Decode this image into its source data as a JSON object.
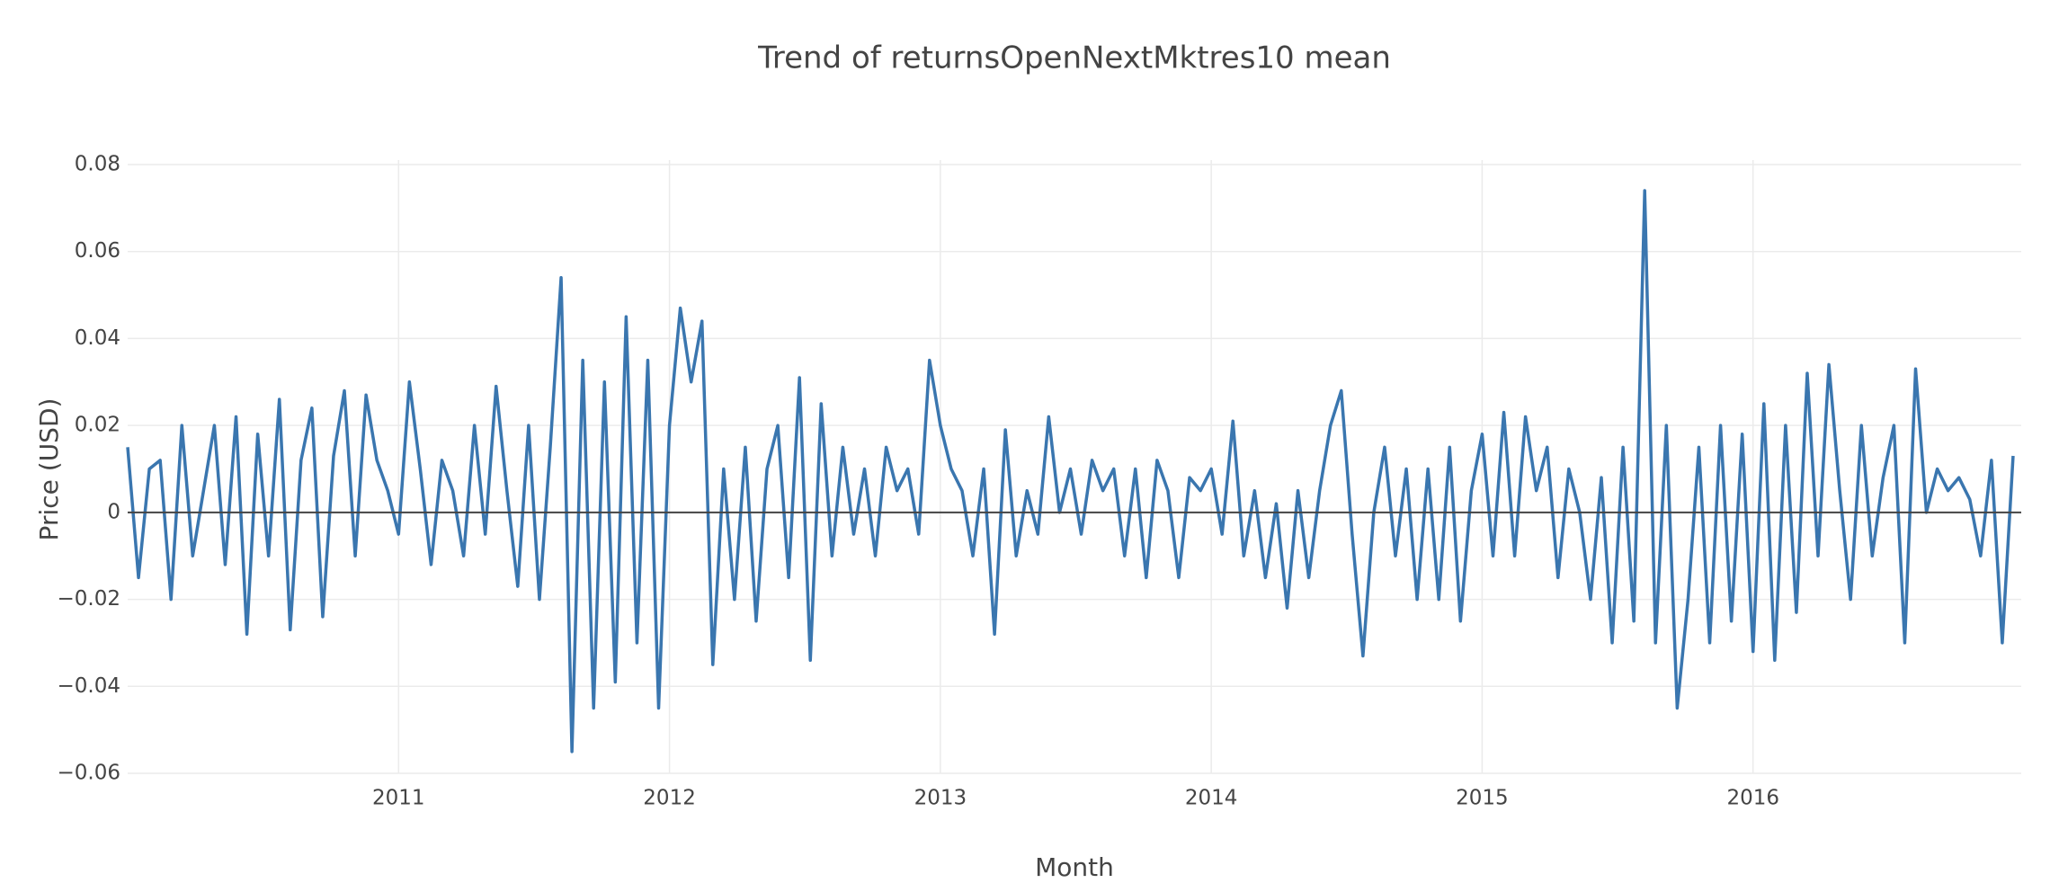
{
  "chart_data": {
    "type": "line",
    "title": "Trend of returnsOpenNextMktres10 mean",
    "xlabel": "Month",
    "ylabel": "Price (USD)",
    "xlim": [
      2010.0,
      2016.99
    ],
    "xticks": [
      2011,
      2012,
      2013,
      2014,
      2015,
      2016
    ],
    "ylim": [
      -0.06,
      0.08
    ],
    "yticks": [
      {
        "value": -0.06,
        "label": "−0.06"
      },
      {
        "value": -0.04,
        "label": "−0.04"
      },
      {
        "value": -0.02,
        "label": "−0.02"
      },
      0,
      0.02,
      0.04,
      0.06,
      0.08
    ],
    "grid": true,
    "zeroline": true,
    "x": [
      2010,
      2010.04,
      2010.08,
      2010.12,
      2010.16,
      2010.2,
      2010.24,
      2010.28,
      2010.32,
      2010.36,
      2010.4,
      2010.44,
      2010.48,
      2010.52,
      2010.56,
      2010.6,
      2010.64,
      2010.68,
      2010.72,
      2010.76,
      2010.8,
      2010.84,
      2010.88,
      2010.92,
      2010.96,
      2011,
      2011.04,
      2011.08,
      2011.12,
      2011.16,
      2011.2,
      2011.24,
      2011.28,
      2011.32,
      2011.36,
      2011.4,
      2011.44,
      2011.48,
      2011.52,
      2011.56,
      2011.6,
      2011.64,
      2011.68,
      2011.72,
      2011.76,
      2011.8,
      2011.84,
      2011.88,
      2011.92,
      2011.96,
      2012,
      2012.04,
      2012.08,
      2012.12,
      2012.16,
      2012.2,
      2012.24,
      2012.28,
      2012.32,
      2012.36,
      2012.4,
      2012.44,
      2012.48,
      2012.52,
      2012.56,
      2012.6,
      2012.64,
      2012.68,
      2012.72,
      2012.76,
      2012.8,
      2012.84,
      2012.88,
      2012.92,
      2012.96,
      2013,
      2013.04,
      2013.08,
      2013.12,
      2013.16,
      2013.2,
      2013.24,
      2013.28,
      2013.32,
      2013.36,
      2013.4,
      2013.44,
      2013.48,
      2013.52,
      2013.56,
      2013.6,
      2013.64,
      2013.68,
      2013.72,
      2013.76,
      2013.8,
      2013.84,
      2013.88,
      2013.92,
      2013.96,
      2014,
      2014.04,
      2014.08,
      2014.12,
      2014.16,
      2014.2,
      2014.24,
      2014.28,
      2014.32,
      2014.36,
      2014.4,
      2014.44,
      2014.48,
      2014.52,
      2014.56,
      2014.6,
      2014.64,
      2014.68,
      2014.72,
      2014.76,
      2014.8,
      2014.84,
      2014.88,
      2014.92,
      2014.96,
      2015,
      2015.04,
      2015.08,
      2015.12,
      2015.16,
      2015.2,
      2015.24,
      2015.28,
      2015.32,
      2015.36,
      2015.4,
      2015.44,
      2015.48,
      2015.52,
      2015.56,
      2015.6,
      2015.64,
      2015.68,
      2015.72,
      2015.76,
      2015.8,
      2015.84,
      2015.88,
      2015.92,
      2015.96,
      2016,
      2016.04,
      2016.08,
      2016.12,
      2016.16,
      2016.2,
      2016.24,
      2016.28,
      2016.32,
      2016.36,
      2016.4,
      2016.44,
      2016.48,
      2016.52,
      2016.56,
      2016.6,
      2016.64,
      2016.68,
      2016.72,
      2016.76,
      2016.8,
      2016.84,
      2016.88,
      2016.92,
      2016.96
    ],
    "series": [
      {
        "name": "returnsOpenNextMktres10",
        "color": "#3a76af",
        "values": [
          0.015,
          -0.015,
          0.01,
          0.012,
          -0.02,
          0.02,
          -0.01,
          0.005,
          0.02,
          -0.012,
          0.022,
          -0.028,
          0.018,
          -0.01,
          0.026,
          -0.027,
          0.012,
          0.024,
          -0.024,
          0.013,
          0.028,
          -0.01,
          0.027,
          0.012,
          0.005,
          -0.005,
          0.03,
          0.01,
          -0.012,
          0.012,
          0.005,
          -0.01,
          0.02,
          -0.005,
          0.029,
          0.005,
          -0.017,
          0.02,
          -0.02,
          0.015,
          0.054,
          -0.055,
          0.035,
          -0.045,
          0.03,
          -0.039,
          0.045,
          -0.03,
          0.035,
          -0.045,
          0.02,
          0.047,
          0.03,
          0.044,
          -0.035,
          0.01,
          -0.02,
          0.015,
          -0.025,
          0.01,
          0.02,
          -0.015,
          0.031,
          -0.034,
          0.025,
          -0.01,
          0.015,
          -0.005,
          0.01,
          -0.01,
          0.015,
          0.005,
          0.01,
          -0.005,
          0.035,
          0.02,
          0.01,
          0.005,
          -0.01,
          0.01,
          -0.028,
          0.019,
          -0.01,
          0.005,
          -0.005,
          0.022,
          0.0,
          0.01,
          -0.005,
          0.012,
          0.005,
          0.01,
          -0.01,
          0.01,
          -0.015,
          0.012,
          0.005,
          -0.015,
          0.008,
          0.005,
          0.01,
          -0.005,
          0.021,
          -0.01,
          0.005,
          -0.015,
          0.002,
          -0.022,
          0.005,
          -0.015,
          0.005,
          0.02,
          0.028,
          -0.005,
          -0.033,
          0.0,
          0.015,
          -0.01,
          0.01,
          -0.02,
          0.01,
          -0.02,
          0.015,
          -0.025,
          0.005,
          0.018,
          -0.01,
          0.023,
          -0.01,
          0.022,
          0.005,
          0.015,
          -0.015,
          0.01,
          0.0,
          -0.02,
          0.008,
          -0.03,
          0.015,
          -0.025,
          0.074,
          -0.03,
          0.02,
          -0.045,
          -0.02,
          0.015,
          -0.03,
          0.02,
          -0.025,
          0.018,
          -0.032,
          0.025,
          -0.034,
          0.02,
          -0.023,
          0.032,
          -0.01,
          0.034,
          0.005,
          -0.02,
          0.02,
          -0.01,
          0.008,
          0.02,
          -0.03,
          0.033,
          0.0,
          0.01,
          0.005,
          0.008,
          0.003,
          -0.01,
          0.012,
          -0.03,
          0.013
        ]
      }
    ]
  }
}
